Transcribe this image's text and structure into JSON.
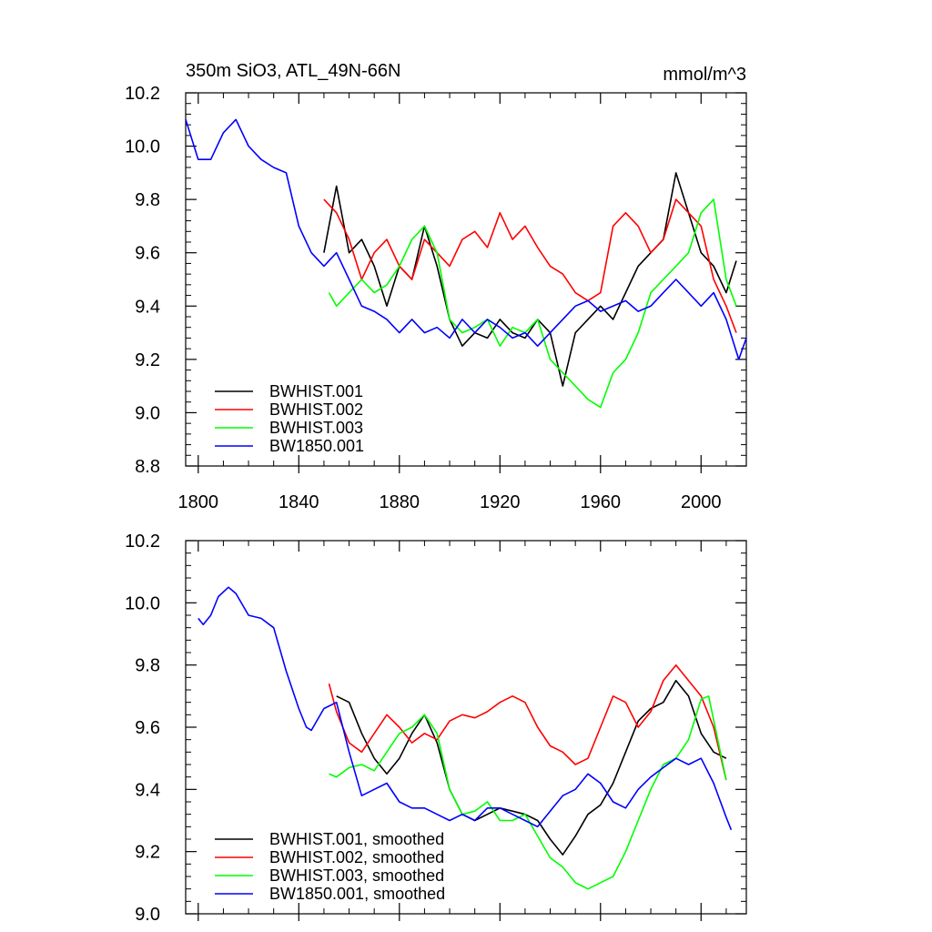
{
  "chart_data": [
    {
      "type": "line",
      "title_left": "350m SiO3, ATL_49N-66N",
      "title_right": "mmol/m^3",
      "xlim": [
        1795,
        2018
      ],
      "ylim": [
        8.8,
        10.2
      ],
      "xticks": [
        1800,
        1840,
        1880,
        1920,
        1960,
        2000
      ],
      "xtick_labels": [
        "1800",
        "1840",
        "1880",
        "1920",
        "1960",
        "2000"
      ],
      "yticks": [
        8.8,
        9.0,
        9.2,
        9.4,
        9.6,
        9.8,
        10.0,
        10.2
      ],
      "ytick_labels": [
        "8.8",
        "9.0",
        "9.2",
        "9.4",
        "9.6",
        "9.8",
        "10.0",
        "10.2"
      ],
      "legend": "bottom-left",
      "series": [
        {
          "name": "BWHIST.001",
          "color": "#000000",
          "x": [
            1850,
            1855,
            1860,
            1865,
            1870,
            1875,
            1880,
            1885,
            1890,
            1895,
            1900,
            1905,
            1910,
            1915,
            1920,
            1925,
            1930,
            1935,
            1940,
            1945,
            1950,
            1955,
            1960,
            1965,
            1970,
            1975,
            1980,
            1985,
            1990,
            1995,
            2000,
            2005,
            2010,
            2014
          ],
          "y": [
            9.6,
            9.85,
            9.6,
            9.65,
            9.55,
            9.4,
            9.55,
            9.5,
            9.7,
            9.55,
            9.35,
            9.25,
            9.3,
            9.28,
            9.35,
            9.3,
            9.28,
            9.35,
            9.3,
            9.1,
            9.3,
            9.35,
            9.4,
            9.35,
            9.45,
            9.55,
            9.6,
            9.65,
            9.9,
            9.75,
            9.6,
            9.55,
            9.45,
            9.57
          ]
        },
        {
          "name": "BWHIST.002",
          "color": "#ff0000",
          "x": [
            1850,
            1855,
            1860,
            1865,
            1870,
            1875,
            1880,
            1885,
            1890,
            1895,
            1900,
            1905,
            1910,
            1915,
            1920,
            1925,
            1930,
            1935,
            1940,
            1945,
            1950,
            1955,
            1960,
            1965,
            1970,
            1975,
            1980,
            1985,
            1990,
            1995,
            2000,
            2005,
            2010,
            2014
          ],
          "y": [
            9.8,
            9.75,
            9.65,
            9.5,
            9.6,
            9.65,
            9.55,
            9.5,
            9.65,
            9.6,
            9.55,
            9.65,
            9.68,
            9.62,
            9.75,
            9.65,
            9.7,
            9.62,
            9.55,
            9.52,
            9.45,
            9.42,
            9.45,
            9.7,
            9.75,
            9.7,
            9.6,
            9.65,
            9.8,
            9.75,
            9.7,
            9.5,
            9.4,
            9.3
          ]
        },
        {
          "name": "BWHIST.003",
          "color": "#00ff00",
          "x": [
            1852,
            1855,
            1860,
            1865,
            1870,
            1875,
            1880,
            1885,
            1890,
            1895,
            1900,
            1905,
            1910,
            1915,
            1920,
            1925,
            1930,
            1935,
            1940,
            1945,
            1950,
            1955,
            1960,
            1965,
            1970,
            1975,
            1980,
            1985,
            1990,
            1995,
            2000,
            2005,
            2010,
            2014
          ],
          "y": [
            9.45,
            9.4,
            9.45,
            9.5,
            9.45,
            9.48,
            9.55,
            9.65,
            9.7,
            9.6,
            9.35,
            9.3,
            9.32,
            9.35,
            9.25,
            9.32,
            9.3,
            9.35,
            9.2,
            9.15,
            9.1,
            9.05,
            9.02,
            9.15,
            9.2,
            9.3,
            9.45,
            9.5,
            9.55,
            9.6,
            9.75,
            9.8,
            9.5,
            9.4
          ]
        },
        {
          "name": "BW1850.001",
          "color": "#0000ff",
          "x": [
            1795,
            1800,
            1805,
            1810,
            1815,
            1820,
            1825,
            1830,
            1835,
            1840,
            1845,
            1850,
            1855,
            1860,
            1865,
            1870,
            1875,
            1880,
            1885,
            1890,
            1895,
            1900,
            1905,
            1910,
            1915,
            1920,
            1925,
            1930,
            1935,
            1940,
            1945,
            1950,
            1955,
            1960,
            1965,
            1970,
            1975,
            1980,
            1985,
            1990,
            1995,
            2000,
            2005,
            2010,
            2015,
            2018
          ],
          "y": [
            10.1,
            9.95,
            9.95,
            10.05,
            10.1,
            10.0,
            9.95,
            9.92,
            9.9,
            9.7,
            9.6,
            9.55,
            9.6,
            9.5,
            9.4,
            9.38,
            9.35,
            9.3,
            9.35,
            9.3,
            9.32,
            9.28,
            9.35,
            9.3,
            9.35,
            9.32,
            9.28,
            9.3,
            9.25,
            9.3,
            9.35,
            9.4,
            9.42,
            9.38,
            9.4,
            9.42,
            9.38,
            9.4,
            9.45,
            9.5,
            9.45,
            9.4,
            9.45,
            9.35,
            9.2,
            9.28
          ]
        }
      ]
    },
    {
      "type": "line",
      "title_left": "",
      "title_right": "",
      "xlim": [
        1795,
        2018
      ],
      "ylim": [
        9.0,
        10.2
      ],
      "xticks": [
        1800,
        1840,
        1880,
        1920,
        1960,
        2000
      ],
      "yticks": [
        9.0,
        9.2,
        9.4,
        9.6,
        9.8,
        10.0,
        10.2
      ],
      "ytick_labels": [
        "9.0",
        "9.2",
        "9.4",
        "9.6",
        "9.8",
        "10.0",
        "10.2"
      ],
      "legend": "bottom-left",
      "series": [
        {
          "name": "BWHIST.001, smoothed",
          "color": "#000000",
          "x": [
            1855,
            1860,
            1865,
            1870,
            1875,
            1880,
            1885,
            1890,
            1895,
            1900,
            1905,
            1910,
            1915,
            1920,
            1925,
            1930,
            1935,
            1940,
            1945,
            1950,
            1955,
            1960,
            1965,
            1970,
            1975,
            1980,
            1985,
            1990,
            1995,
            2000,
            2005,
            2010
          ],
          "y": [
            9.7,
            9.68,
            9.58,
            9.5,
            9.45,
            9.5,
            9.58,
            9.64,
            9.55,
            9.4,
            9.32,
            9.3,
            9.32,
            9.34,
            9.33,
            9.32,
            9.3,
            9.24,
            9.19,
            9.25,
            9.32,
            9.35,
            9.42,
            9.52,
            9.62,
            9.66,
            9.68,
            9.75,
            9.7,
            9.58,
            9.52,
            9.5
          ]
        },
        {
          "name": "BWHIST.002, smoothed",
          "color": "#ff0000",
          "x": [
            1852,
            1855,
            1860,
            1865,
            1870,
            1875,
            1880,
            1885,
            1890,
            1895,
            1900,
            1905,
            1910,
            1915,
            1920,
            1925,
            1930,
            1935,
            1940,
            1945,
            1950,
            1955,
            1960,
            1965,
            1970,
            1975,
            1980,
            1985,
            1990,
            1995,
            2000,
            2005,
            2010
          ],
          "y": [
            9.74,
            9.65,
            9.55,
            9.52,
            9.58,
            9.64,
            9.6,
            9.55,
            9.58,
            9.56,
            9.62,
            9.64,
            9.63,
            9.65,
            9.68,
            9.7,
            9.68,
            9.6,
            9.54,
            9.52,
            9.48,
            9.5,
            9.6,
            9.7,
            9.68,
            9.6,
            9.65,
            9.75,
            9.8,
            9.75,
            9.7,
            9.6,
            9.43
          ]
        },
        {
          "name": "BWHIST.003, smoothed",
          "color": "#00ff00",
          "x": [
            1852,
            1855,
            1860,
            1865,
            1870,
            1875,
            1880,
            1885,
            1890,
            1895,
            1900,
            1905,
            1910,
            1915,
            1920,
            1925,
            1930,
            1935,
            1940,
            1945,
            1950,
            1955,
            1960,
            1965,
            1970,
            1975,
            1980,
            1985,
            1990,
            1995,
            2000,
            2003,
            2010
          ],
          "y": [
            9.45,
            9.44,
            9.47,
            9.48,
            9.46,
            9.52,
            9.58,
            9.6,
            9.64,
            9.58,
            9.4,
            9.32,
            9.33,
            9.36,
            9.3,
            9.3,
            9.32,
            9.25,
            9.18,
            9.15,
            9.1,
            9.08,
            9.1,
            9.12,
            9.2,
            9.3,
            9.4,
            9.48,
            9.5,
            9.56,
            9.69,
            9.7,
            9.43
          ]
        },
        {
          "name": "BW1850.001, smoothed",
          "color": "#0000ff",
          "x": [
            1800,
            1802,
            1805,
            1808,
            1812,
            1815,
            1820,
            1825,
            1830,
            1835,
            1840,
            1843,
            1845,
            1850,
            1855,
            1860,
            1865,
            1870,
            1875,
            1880,
            1885,
            1890,
            1895,
            1900,
            1905,
            1910,
            1915,
            1920,
            1925,
            1930,
            1935,
            1940,
            1945,
            1950,
            1955,
            1960,
            1965,
            1970,
            1975,
            1980,
            1985,
            1990,
            1995,
            2000,
            2005,
            2010,
            2012
          ],
          "y": [
            9.95,
            9.93,
            9.96,
            10.02,
            10.05,
            10.03,
            9.96,
            9.95,
            9.92,
            9.78,
            9.66,
            9.6,
            9.59,
            9.66,
            9.68,
            9.52,
            9.38,
            9.4,
            9.42,
            9.36,
            9.34,
            9.34,
            9.32,
            9.3,
            9.32,
            9.3,
            9.34,
            9.34,
            9.32,
            9.3,
            9.28,
            9.33,
            9.38,
            9.4,
            9.45,
            9.42,
            9.36,
            9.34,
            9.4,
            9.44,
            9.47,
            9.5,
            9.48,
            9.5,
            9.42,
            9.31,
            9.27
          ]
        }
      ]
    }
  ]
}
